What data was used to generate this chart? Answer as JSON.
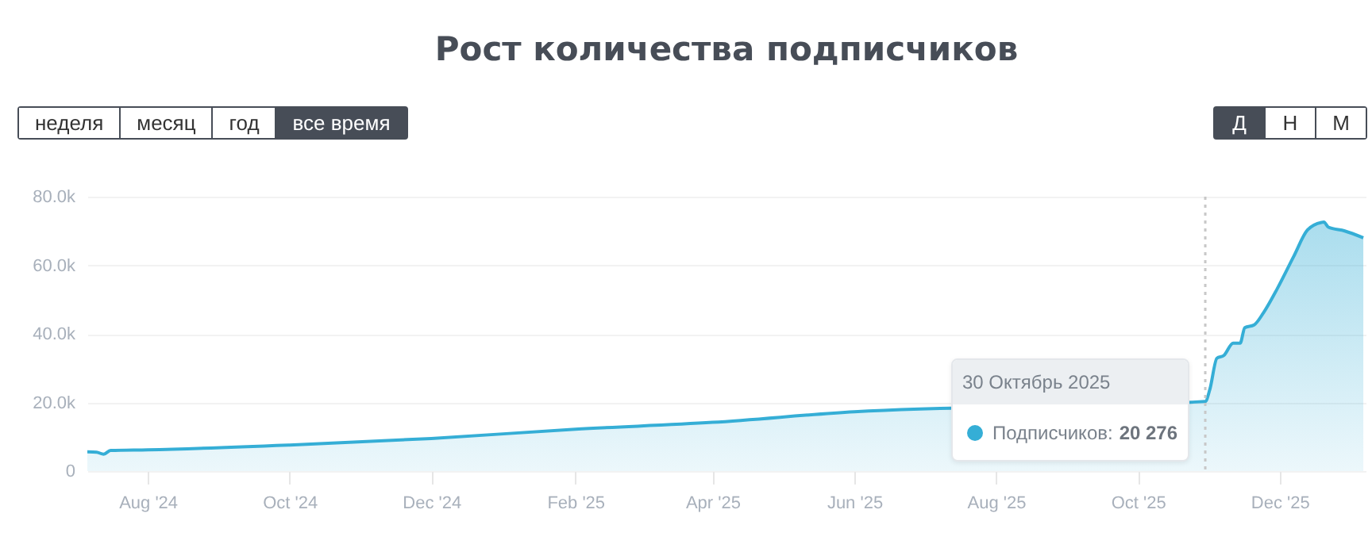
{
  "chart_data": {
    "type": "area",
    "title": "Рост количества подписчиков",
    "x": [
      "2024-07-06",
      "2024-07-10",
      "2024-07-13",
      "2024-07-16",
      "2024-08-01",
      "2024-10-01",
      "2024-12-01",
      "2025-02-01",
      "2025-04-01",
      "2025-06-01",
      "2025-10-30",
      "2025-11-01",
      "2025-11-04",
      "2025-11-07",
      "2025-11-11",
      "2025-11-14",
      "2025-11-16",
      "2025-11-20",
      "2025-11-24",
      "2025-11-30",
      "2025-12-07",
      "2025-12-13",
      "2025-12-19",
      "2025-12-20",
      "2025-12-22",
      "2025-12-29",
      "2026-01-06"
    ],
    "series": [
      {
        "name": "Подписчиков:",
        "color": "#35aed6",
        "values": [
          5600,
          5500,
          4900,
          6000,
          6200,
          7600,
          9500,
          12200,
          14200,
          17300,
          20276,
          23900,
          32900,
          33700,
          37300,
          37300,
          41800,
          42600,
          46100,
          53200,
          62500,
          70300,
          72500,
          72600,
          71100,
          70000,
          68000
        ]
      }
    ],
    "xlim": [
      "2024-07-06",
      "2026-01-07"
    ],
    "xticks": [
      {
        "value": "2024-08-01",
        "label": "Aug '24"
      },
      {
        "value": "2024-10-01",
        "label": "Oct '24"
      },
      {
        "value": "2024-12-01",
        "label": "Dec '24"
      },
      {
        "value": "2025-02-01",
        "label": "Feb '25"
      },
      {
        "value": "2025-04-01",
        "label": "Apr '25"
      },
      {
        "value": "2025-06-01",
        "label": "Jun '25"
      },
      {
        "value": "2025-08-01",
        "label": "Aug '25"
      },
      {
        "value": "2025-10-01",
        "label": "Oct '25"
      },
      {
        "value": "2025-12-01",
        "label": "Dec '25"
      }
    ],
    "ylim": [
      0,
      80000
    ],
    "yticks": [
      0,
      {
        "value": 20000,
        "label": "20.0k"
      },
      {
        "value": 40000,
        "label": "40.0k"
      },
      {
        "value": 60000,
        "label": "60.0k"
      },
      {
        "value": 80000,
        "label": "80.0k"
      }
    ],
    "grid": "y",
    "ref_lines": [
      {
        "axis": "x",
        "value": "2025-10-30",
        "color": "#c8c8c8",
        "line_style": "dotted"
      }
    ],
    "annotations": [
      "неделя",
      "месяц",
      "год",
      "все время",
      "Д",
      "Н",
      "М",
      "30 Октябрь 2025",
      "20 276"
    ]
  }
}
